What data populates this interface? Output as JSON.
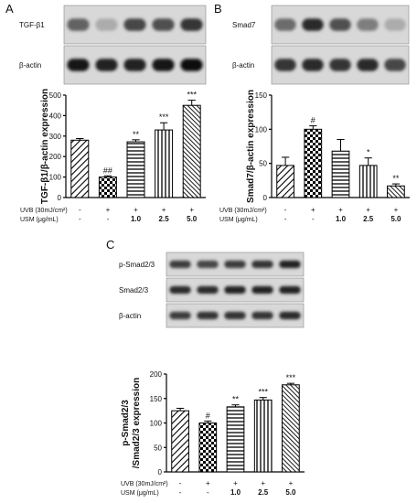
{
  "panels": [
    {
      "letter": "A"
    },
    {
      "letter": "B"
    },
    {
      "letter": "C"
    }
  ],
  "blots": [
    {
      "rows": [
        {
          "label": "TGF-β1",
          "intensities": [
            0.55,
            0.15,
            0.7,
            0.65,
            0.8
          ]
        },
        {
          "label": "β-actin",
          "intensities": [
            0.95,
            0.9,
            0.9,
            0.95,
            1.0
          ]
        }
      ]
    },
    {
      "rows": [
        {
          "label": "Smad7",
          "intensities": [
            0.5,
            0.85,
            0.65,
            0.4,
            0.15
          ]
        },
        {
          "label": "β-actin",
          "intensities": [
            0.8,
            0.85,
            0.8,
            0.85,
            0.7
          ]
        }
      ]
    },
    {
      "rows": [
        {
          "label": "p-Smad2/3",
          "intensities": [
            0.75,
            0.7,
            0.75,
            0.8,
            0.9
          ]
        },
        {
          "label": "Smad2/3",
          "intensities": [
            0.85,
            0.85,
            0.9,
            0.9,
            0.9
          ]
        },
        {
          "label": "β-actin",
          "intensities": [
            0.75,
            0.8,
            0.8,
            0.8,
            0.85
          ]
        }
      ]
    }
  ],
  "chart_data": [
    {
      "type": "bar",
      "ylabel": "TGF-β1/β-actin expression",
      "ylim": [
        0,
        500
      ],
      "yticks": [
        "0",
        "100",
        "200",
        "300",
        "400",
        "500"
      ],
      "values": [
        280,
        100,
        272,
        330,
        450
      ],
      "errors": [
        8,
        6,
        10,
        35,
        25
      ],
      "significance": [
        "",
        "##",
        "**",
        "***",
        "***"
      ],
      "patterns": [
        "diag",
        "check",
        "hlines",
        "vlines",
        "diag-dense"
      ],
      "treatment_rows": [
        {
          "label": "UVB (30mJ/cm²)",
          "values": [
            "-",
            "+",
            "+",
            "+",
            "+"
          ]
        },
        {
          "label": "USM (μg/mL)",
          "values": [
            "-",
            "-",
            "1.0",
            "2.5",
            "5.0"
          ]
        }
      ]
    },
    {
      "type": "bar",
      "ylabel": "Smad7/β-actin expression",
      "ylim": [
        0,
        150
      ],
      "yticks": [
        "0",
        "50",
        "100",
        "150"
      ],
      "values": [
        47,
        100,
        68,
        47,
        17
      ],
      "errors": [
        12,
        5,
        17,
        11,
        3
      ],
      "significance": [
        "",
        "#",
        "",
        "*",
        "**"
      ],
      "patterns": [
        "diag",
        "check",
        "hlines",
        "vlines",
        "diag-dense"
      ],
      "treatment_rows": [
        {
          "label": "UVB (30mJ/cm²)",
          "values": [
            "-",
            "+",
            "+",
            "+",
            "+"
          ]
        },
        {
          "label": "USM (μg/mL)",
          "values": [
            "-",
            "-",
            "1.0",
            "2.5",
            "5.0"
          ]
        }
      ]
    },
    {
      "type": "bar",
      "ylabel": "p-Smad2/3 /Smad2/3 expression",
      "ylim": [
        0,
        200
      ],
      "yticks": [
        "0",
        "50",
        "100",
        "150",
        "200"
      ],
      "values": [
        125,
        100,
        133,
        147,
        178
      ],
      "errors": [
        5,
        4,
        4,
        5,
        3
      ],
      "significance": [
        "",
        "#",
        "**",
        "***",
        "***"
      ],
      "patterns": [
        "diag",
        "check",
        "hlines",
        "vlines",
        "diag-dense"
      ],
      "treatment_rows": [
        {
          "label": "UVB (30mJ/cm²)",
          "values": [
            "-",
            "+",
            "+",
            "+",
            "+"
          ]
        },
        {
          "label": "USM (μg/mL)",
          "values": [
            "-",
            "-",
            "1.0",
            "2.5",
            "5.0"
          ]
        }
      ]
    }
  ]
}
